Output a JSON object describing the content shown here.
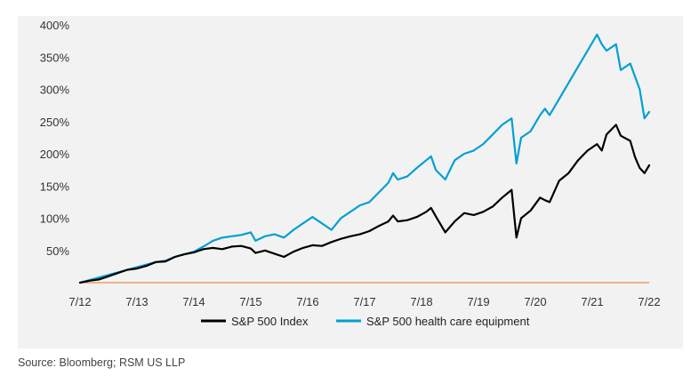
{
  "source": "Source: Bloomberg; RSM US LLP",
  "chart_data": {
    "type": "line",
    "title": "",
    "xlabel": "",
    "ylabel": "",
    "x_ticks": [
      "7/12",
      "7/13",
      "7/14",
      "7/15",
      "7/16",
      "7/17",
      "7/18",
      "7/19",
      "7/20",
      "7/21",
      "7/22"
    ],
    "y_ticks": [
      "50%",
      "100%",
      "150%",
      "200%",
      "250%",
      "300%",
      "350%",
      "400%"
    ],
    "y_tick_values": [
      50,
      100,
      150,
      200,
      250,
      300,
      350,
      400
    ],
    "xlim": [
      "2012-07",
      "2022-07"
    ],
    "ylim": [
      0,
      400
    ],
    "grid": false,
    "baseline_color": "#e87722",
    "legend": {
      "placement": "bottom-center"
    },
    "series": [
      {
        "name": "S&P 500 Index",
        "color": "#000000",
        "points": [
          [
            "2012-07",
            0
          ],
          [
            "2012-09",
            3
          ],
          [
            "2012-11",
            5
          ],
          [
            "2013-01",
            10
          ],
          [
            "2013-03",
            15
          ],
          [
            "2013-05",
            20
          ],
          [
            "2013-07",
            22
          ],
          [
            "2013-09",
            26
          ],
          [
            "2013-11",
            32
          ],
          [
            "2014-01",
            33
          ],
          [
            "2014-03",
            40
          ],
          [
            "2014-05",
            44
          ],
          [
            "2014-07",
            47
          ],
          [
            "2014-09",
            52
          ],
          [
            "2014-11",
            54
          ],
          [
            "2015-01",
            52
          ],
          [
            "2015-03",
            56
          ],
          [
            "2015-05",
            57
          ],
          [
            "2015-07",
            53
          ],
          [
            "2015-08",
            46
          ],
          [
            "2015-10",
            50
          ],
          [
            "2015-12",
            45
          ],
          [
            "2016-02",
            40
          ],
          [
            "2016-04",
            48
          ],
          [
            "2016-06",
            54
          ],
          [
            "2016-08",
            58
          ],
          [
            "2016-10",
            57
          ],
          [
            "2016-12",
            63
          ],
          [
            "2017-02",
            68
          ],
          [
            "2017-04",
            72
          ],
          [
            "2017-06",
            75
          ],
          [
            "2017-08",
            80
          ],
          [
            "2017-10",
            88
          ],
          [
            "2017-12",
            95
          ],
          [
            "2018-01",
            104
          ],
          [
            "2018-02",
            95
          ],
          [
            "2018-04",
            97
          ],
          [
            "2018-06",
            102
          ],
          [
            "2018-08",
            110
          ],
          [
            "2018-09",
            116
          ],
          [
            "2018-10",
            103
          ],
          [
            "2018-12",
            78
          ],
          [
            "2019-02",
            95
          ],
          [
            "2019-04",
            108
          ],
          [
            "2019-06",
            105
          ],
          [
            "2019-08",
            110
          ],
          [
            "2019-10",
            118
          ],
          [
            "2019-12",
            132
          ],
          [
            "2020-02",
            144
          ],
          [
            "2020-03",
            70
          ],
          [
            "2020-04",
            100
          ],
          [
            "2020-06",
            112
          ],
          [
            "2020-08",
            132
          ],
          [
            "2020-09",
            128
          ],
          [
            "2020-10",
            125
          ],
          [
            "2020-12",
            158
          ],
          [
            "2021-02",
            170
          ],
          [
            "2021-04",
            190
          ],
          [
            "2021-06",
            205
          ],
          [
            "2021-08",
            215
          ],
          [
            "2021-09",
            205
          ],
          [
            "2021-10",
            230
          ],
          [
            "2021-12",
            245
          ],
          [
            "2022-01",
            228
          ],
          [
            "2022-03",
            220
          ],
          [
            "2022-04",
            195
          ],
          [
            "2022-05",
            178
          ],
          [
            "2022-06",
            170
          ],
          [
            "2022-07",
            182
          ]
        ]
      },
      {
        "name": "S&P 500 health care equipment",
        "color": "#00a0d2",
        "points": [
          [
            "2012-07",
            0
          ],
          [
            "2012-09",
            4
          ],
          [
            "2012-11",
            8
          ],
          [
            "2013-01",
            12
          ],
          [
            "2013-03",
            16
          ],
          [
            "2013-05",
            20
          ],
          [
            "2013-07",
            24
          ],
          [
            "2013-09",
            28
          ],
          [
            "2013-11",
            32
          ],
          [
            "2014-01",
            34
          ],
          [
            "2014-03",
            40
          ],
          [
            "2014-05",
            44
          ],
          [
            "2014-07",
            48
          ],
          [
            "2014-09",
            56
          ],
          [
            "2014-11",
            65
          ],
          [
            "2015-01",
            70
          ],
          [
            "2015-03",
            72
          ],
          [
            "2015-05",
            74
          ],
          [
            "2015-07",
            78
          ],
          [
            "2015-08",
            65
          ],
          [
            "2015-10",
            72
          ],
          [
            "2015-12",
            75
          ],
          [
            "2016-02",
            70
          ],
          [
            "2016-04",
            82
          ],
          [
            "2016-06",
            92
          ],
          [
            "2016-08",
            102
          ],
          [
            "2016-10",
            92
          ],
          [
            "2016-12",
            82
          ],
          [
            "2017-02",
            100
          ],
          [
            "2017-04",
            110
          ],
          [
            "2017-06",
            120
          ],
          [
            "2017-08",
            125
          ],
          [
            "2017-10",
            140
          ],
          [
            "2017-12",
            155
          ],
          [
            "2018-01",
            170
          ],
          [
            "2018-02",
            160
          ],
          [
            "2018-04",
            165
          ],
          [
            "2018-06",
            178
          ],
          [
            "2018-08",
            190
          ],
          [
            "2018-09",
            196
          ],
          [
            "2018-10",
            175
          ],
          [
            "2018-12",
            160
          ],
          [
            "2019-02",
            190
          ],
          [
            "2019-04",
            200
          ],
          [
            "2019-06",
            205
          ],
          [
            "2019-08",
            215
          ],
          [
            "2019-10",
            230
          ],
          [
            "2019-12",
            245
          ],
          [
            "2020-02",
            255
          ],
          [
            "2020-03",
            185
          ],
          [
            "2020-04",
            225
          ],
          [
            "2020-06",
            235
          ],
          [
            "2020-08",
            260
          ],
          [
            "2020-09",
            270
          ],
          [
            "2020-10",
            260
          ],
          [
            "2020-12",
            285
          ],
          [
            "2021-02",
            310
          ],
          [
            "2021-04",
            335
          ],
          [
            "2021-06",
            360
          ],
          [
            "2021-08",
            385
          ],
          [
            "2021-09",
            370
          ],
          [
            "2021-10",
            360
          ],
          [
            "2021-12",
            370
          ],
          [
            "2022-01",
            330
          ],
          [
            "2022-03",
            340
          ],
          [
            "2022-04",
            320
          ],
          [
            "2022-05",
            300
          ],
          [
            "2022-06",
            255
          ],
          [
            "2022-07",
            265
          ]
        ]
      }
    ]
  }
}
